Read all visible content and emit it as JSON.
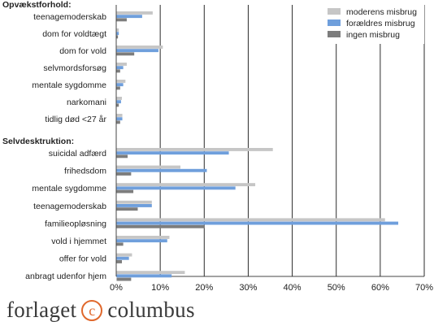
{
  "chart_data": {
    "type": "bar",
    "orientation": "horizontal",
    "title": "",
    "xlabel": "",
    "ylabel": "",
    "xlim": [
      0,
      70
    ],
    "x_ticks": [
      "0%",
      "10%",
      "20%",
      "30%",
      "40%",
      "50%",
      "60%",
      "70%"
    ],
    "grid": true,
    "legend_position": "top-right",
    "series": [
      {
        "name": "moderens misbrug",
        "color": "#c6c6c6"
      },
      {
        "name": "forældres misbrug",
        "color": "#6f9fdc"
      },
      {
        "name": "ingen misbrug",
        "color": "#7d7d7d"
      }
    ],
    "groups": [
      {
        "heading": "Opvækstforhold:",
        "categories": [
          {
            "label": "teenagemoderskab",
            "values": [
              8.2,
              5.8,
              2.3
            ]
          },
          {
            "label": "dom for voldtægt",
            "values": [
              0.5,
              0.5,
              0.3
            ]
          },
          {
            "label": "dom for vold",
            "values": [
              10.5,
              9.5,
              4.0
            ]
          },
          {
            "label": "selvmordsforsøg",
            "values": [
              2.3,
              1.5,
              0.8
            ]
          },
          {
            "label": "mentale sygdomme",
            "values": [
              2.0,
              1.5,
              0.8
            ]
          },
          {
            "label": "narkomani",
            "values": [
              1.2,
              1.0,
              0.5
            ]
          },
          {
            "label": "tidlig død <27 år",
            "values": [
              1.3,
              1.3,
              0.8
            ]
          }
        ]
      },
      {
        "heading": "Selvdesktruktion:",
        "categories": [
          {
            "label": "suicidal adfærd",
            "values": [
              35.5,
              25.5,
              2.5
            ]
          },
          {
            "label": "frihedsdom",
            "values": [
              14.5,
              20.5,
              3.3
            ]
          },
          {
            "label": "mentale sygdomme",
            "values": [
              31.5,
              27.0,
              3.8
            ]
          },
          {
            "label": "teenagemoderskab",
            "values": [
              8.0,
              8.0,
              4.8
            ]
          },
          {
            "label": "familieopløsning",
            "values": [
              61.0,
              64.0,
              20.0
            ]
          },
          {
            "label": "vold i hjemmet",
            "values": [
              12.0,
              11.5,
              1.5
            ]
          },
          {
            "label": "offer for vold",
            "values": [
              3.5,
              2.8,
              1.2
            ]
          },
          {
            "label": "anbragt udenfor hjem",
            "values": [
              15.5,
              12.5,
              3.3
            ]
          }
        ]
      }
    ]
  },
  "publisher": {
    "name_left": "forlaget",
    "mark": "c",
    "name_right": "columbus",
    "mark_color": "#e0682c"
  }
}
